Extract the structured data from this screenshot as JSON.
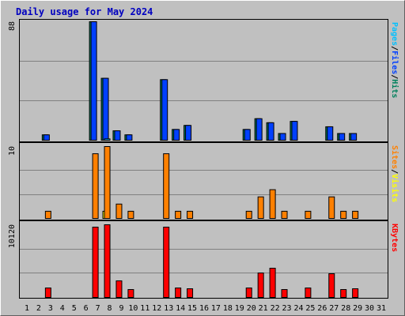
{
  "title": "Daily usage for May 2024",
  "separator": "/",
  "categories": [
    "1",
    "2",
    "3",
    "4",
    "5",
    "6",
    "7",
    "8",
    "9",
    "10",
    "11",
    "12",
    "13",
    "14",
    "15",
    "16",
    "17",
    "18",
    "19",
    "20",
    "21",
    "22",
    "23",
    "24",
    "25",
    "26",
    "27",
    "28",
    "29",
    "30",
    "31"
  ],
  "x_label_colors": [
    "#000",
    "#000",
    "#000",
    "#00805c",
    "#00805c",
    "#000",
    "#000",
    "#000",
    "#000",
    "#000",
    "#00805c",
    "#00805c",
    "#000",
    "#000",
    "#000",
    "#000",
    "#000",
    "#00805c",
    "#00805c",
    "#000",
    "#000",
    "#000",
    "#000",
    "#000",
    "#00805c",
    "#00805c",
    "#000",
    "#000",
    "#000",
    "#000",
    "#000"
  ],
  "chart_data": [
    {
      "type": "bar",
      "ylim": [
        0,
        88
      ],
      "yticks": [
        88
      ],
      "series": [
        {
          "name": "Hits",
          "color": "#00805c",
          "values": [
            0,
            0,
            4,
            0,
            0,
            0,
            88,
            46,
            7,
            4,
            0,
            0,
            45,
            8,
            11,
            0,
            0,
            0,
            0,
            8,
            16,
            13,
            5,
            14,
            0,
            0,
            10,
            5,
            5,
            0,
            0
          ]
        },
        {
          "name": "Files",
          "color": "#0040ff",
          "values": [
            0,
            0,
            4,
            0,
            0,
            0,
            88,
            46,
            7,
            4,
            0,
            0,
            45,
            8,
            11,
            0,
            0,
            0,
            0,
            8,
            16,
            13,
            5,
            14,
            0,
            0,
            10,
            5,
            5,
            0,
            0
          ]
        },
        {
          "name": "Pages",
          "color": "#00c0ff",
          "values": [
            0,
            0,
            0,
            0,
            0,
            0,
            0,
            1,
            0,
            0,
            0,
            0,
            0,
            0,
            0,
            0,
            0,
            0,
            0,
            0,
            0,
            0,
            0,
            0,
            0,
            0,
            0,
            0,
            0,
            0,
            0
          ]
        }
      ]
    },
    {
      "type": "bar",
      "ylim": [
        0,
        10
      ],
      "yticks": [
        10
      ],
      "series": [
        {
          "name": "Visits",
          "color": "#ffff00",
          "values": [
            0,
            0,
            0,
            0,
            0,
            0,
            0,
            1,
            0,
            0,
            0,
            0,
            0,
            0,
            0,
            0,
            0,
            0,
            0,
            0,
            0,
            0,
            0,
            0,
            0,
            0,
            0,
            0,
            0,
            0,
            0
          ]
        },
        {
          "name": "Sites",
          "color": "#ff8000",
          "values": [
            0,
            0,
            1,
            0,
            0,
            0,
            9,
            10,
            2,
            1,
            0,
            0,
            9,
            1,
            1,
            0,
            0,
            0,
            0,
            1,
            3,
            4,
            1,
            0,
            1,
            0,
            3,
            1,
            1,
            0,
            0
          ]
        }
      ]
    },
    {
      "type": "bar",
      "ylim": [
        0,
        10120
      ],
      "yticks": [
        10120
      ],
      "series": [
        {
          "name": "KBytes",
          "color": "#ff0000",
          "values": [
            0,
            0,
            1320,
            0,
            0,
            0,
            9790,
            10120,
            2310,
            1100,
            0,
            0,
            9790,
            1320,
            1210,
            0,
            0,
            0,
            0,
            1320,
            3410,
            4070,
            1100,
            0,
            1320,
            0,
            3300,
            1100,
            1210,
            0,
            0
          ]
        }
      ]
    }
  ]
}
